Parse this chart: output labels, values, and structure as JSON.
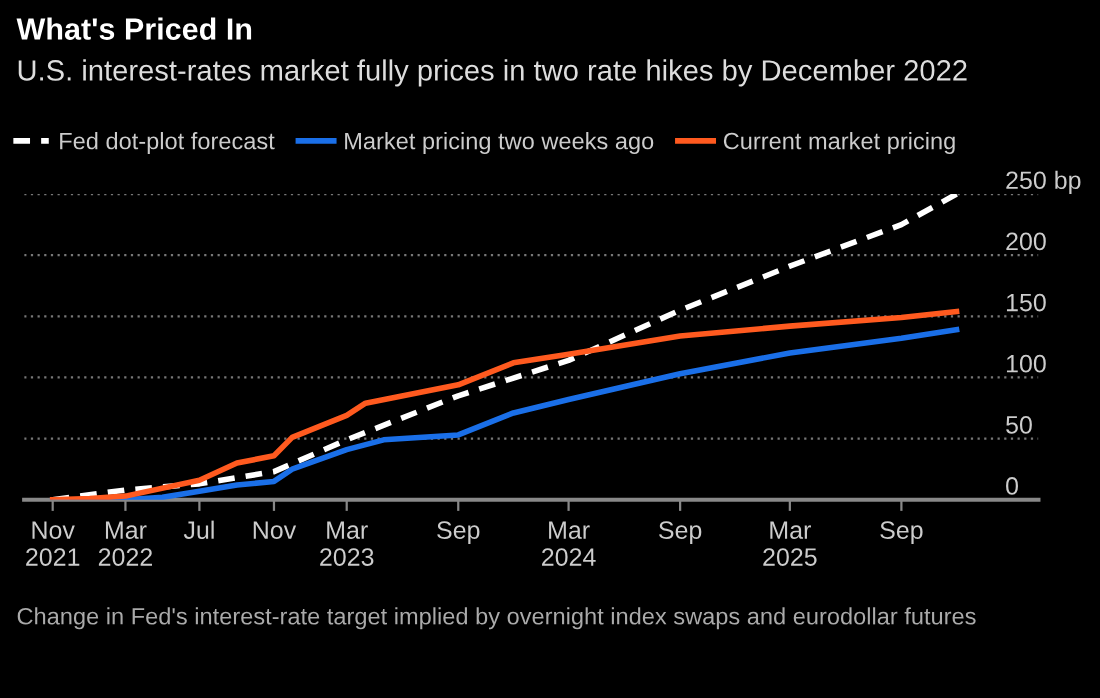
{
  "chart_data": {
    "type": "line",
    "title": "What's Priced In",
    "subtitle": "U.S. interest-rates market fully prices in two rate hikes by December 2022",
    "annotations": [
      "Change in Fed's interest-rate target implied by overnight index swaps and eurodollar futures"
    ],
    "series": [
      {
        "name": "Fed dot-plot forecast",
        "color": "#ffffff",
        "line_style": "dashed",
        "x": [
          "2021-11",
          "2022-03",
          "2022-07",
          "2022-11",
          "2023-03",
          "2023-09",
          "2024-03",
          "2024-09",
          "2025-03",
          "2025-09",
          "2025-12"
        ],
        "values": [
          0,
          8,
          13,
          23,
          49,
          85,
          114,
          155,
          191,
          225,
          250
        ]
      },
      {
        "name": "Market pricing two weeks ago",
        "color": "#1a6fe8",
        "line_style": "solid",
        "x": [
          "2021-11",
          "2022-03",
          "2022-05",
          "2022-07",
          "2022-09",
          "2022-11",
          "2022-12",
          "2023-03",
          "2023-05",
          "2023-09",
          "2023-12",
          "2024-03",
          "2024-09",
          "2025-03",
          "2025-09",
          "2025-12"
        ],
        "values": [
          0,
          0,
          2,
          7,
          12,
          15,
          25,
          41,
          49,
          53,
          71,
          82,
          103,
          120,
          132,
          139
        ]
      },
      {
        "name": "Current market pricing",
        "color": "#ff5a1f",
        "line_style": "solid",
        "x": [
          "2021-11",
          "2022-01",
          "2022-03",
          "2022-07",
          "2022-09",
          "2022-11",
          "2022-12",
          "2023-03",
          "2023-04",
          "2023-09",
          "2023-12",
          "2024-03",
          "2024-09",
          "2025-03",
          "2025-09",
          "2025-12"
        ],
        "values": [
          0,
          1,
          3,
          16,
          30,
          36,
          51,
          69,
          79,
          94,
          112,
          119,
          134,
          142,
          149,
          154
        ]
      }
    ],
    "xlim": [
      "2021-09-15",
      "2026-04-15"
    ],
    "xticks": [
      {
        "value": "2021-11",
        "label": "Nov\n2021"
      },
      {
        "value": "2022-03",
        "label": "Mar\n2022"
      },
      {
        "value": "2022-07",
        "label": "Jul"
      },
      {
        "value": "2022-11",
        "label": "Nov"
      },
      {
        "value": "2023-03",
        "label": "Mar\n2023"
      },
      {
        "value": "2023-09",
        "label": "Sep"
      },
      {
        "value": "2024-03",
        "label": "Mar\n2024"
      },
      {
        "value": "2024-09",
        "label": "Sep"
      },
      {
        "value": "2025-03",
        "label": "Mar\n2025"
      },
      {
        "value": "2025-09",
        "label": "Sep"
      }
    ],
    "ylim": [
      0,
      250
    ],
    "yticks": [
      0,
      50,
      100,
      150,
      200,
      {
        "value": 250,
        "label": "250 bp"
      }
    ],
    "grid": "y",
    "legend": "top left",
    "marker": "none"
  }
}
